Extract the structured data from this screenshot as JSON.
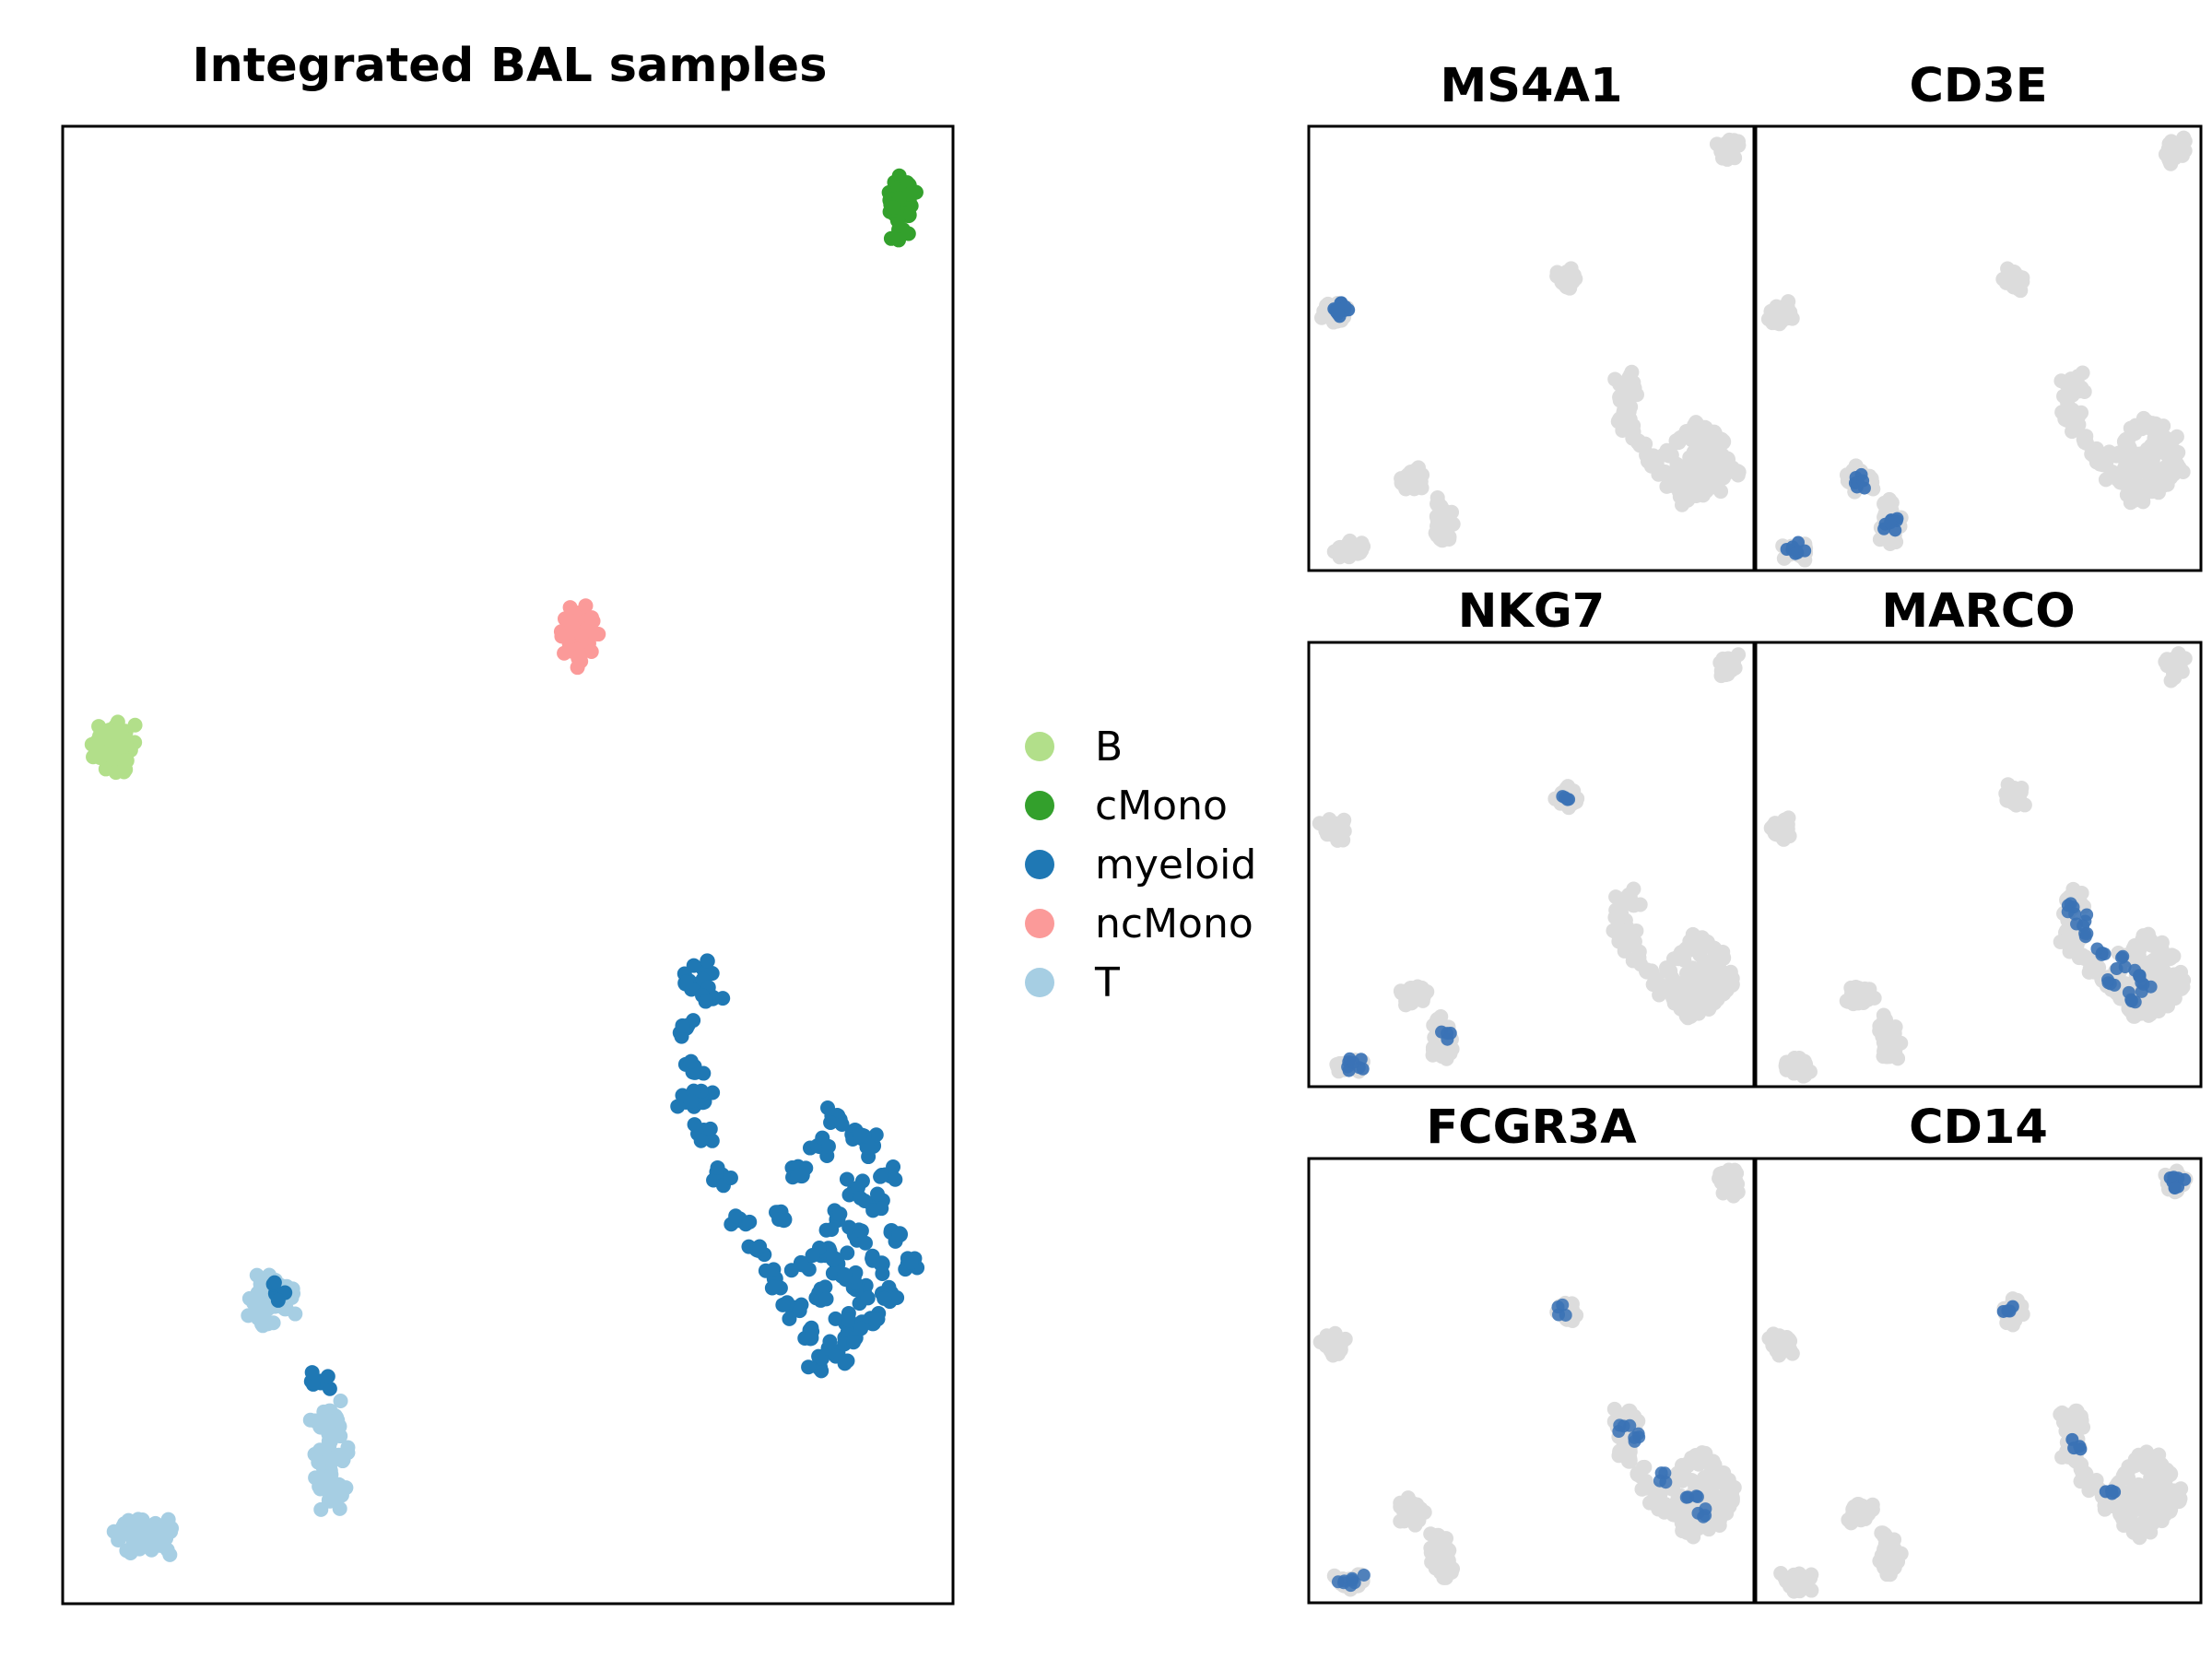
{
  "main_title": "Integrated BAL samples",
  "legend": [
    {
      "label": "B",
      "color": "#b2df8a"
    },
    {
      "label": "cMono",
      "color": "#33a02c"
    },
    {
      "label": "myeloid",
      "color": "#1f78b4"
    },
    {
      "label": "ncMono",
      "color": "#fb9a99"
    },
    {
      "label": "T",
      "color": "#a6cee3"
    }
  ],
  "colors": {
    "background_cell": "#dcdcdc",
    "expression_low": "#e3e3e3",
    "expression_high": "#3a72b5"
  },
  "chart_data": [
    {
      "type": "scatter",
      "title": "Integrated BAL samples",
      "xlabel": "",
      "ylabel": "",
      "xlim": [
        0,
        100
      ],
      "ylim": [
        0,
        100
      ],
      "grid": false,
      "legend_placement": "right",
      "series": [
        {
          "name": "B",
          "color": "#b2df8a",
          "points": [
            [
              5,
              59
            ],
            [
              6,
              58
            ],
            [
              7,
              59
            ],
            [
              5,
              58
            ],
            [
              6,
              59
            ],
            [
              7,
              58
            ],
            [
              5,
              57
            ],
            [
              6,
              57
            ],
            [
              4,
              58
            ],
            [
              7,
              57
            ]
          ]
        },
        {
          "name": "cMono",
          "color": "#33a02c",
          "points": [
            [
              94,
              95
            ],
            [
              95,
              95
            ],
            [
              94,
              94
            ],
            [
              95,
              94
            ],
            [
              94,
              96
            ],
            [
              95,
              96
            ],
            [
              94,
              93
            ],
            [
              93,
              95
            ]
          ]
        },
        {
          "name": "myeloid",
          "color": "#1f78b4",
          "points": [
            [
              70,
              42
            ],
            [
              72,
              43
            ],
            [
              73,
              41
            ],
            [
              70,
              39
            ],
            [
              71,
              36
            ],
            [
              72,
              34
            ],
            [
              70,
              34
            ],
            [
              72,
              32
            ],
            [
              74,
              29
            ],
            [
              76,
              26
            ],
            [
              78,
              24
            ],
            [
              80,
              22
            ],
            [
              82,
              20
            ],
            [
              84,
              18
            ],
            [
              85,
              16
            ],
            [
              87,
              17
            ],
            [
              88,
              19
            ],
            [
              90,
              21
            ],
            [
              92,
              23
            ],
            [
              94,
              25
            ],
            [
              95,
              23
            ],
            [
              93,
              21
            ],
            [
              91,
              19
            ],
            [
              89,
              18
            ],
            [
              88,
              22
            ],
            [
              86,
              24
            ],
            [
              87,
              26
            ],
            [
              89,
              28
            ],
            [
              91,
              31
            ],
            [
              93,
              29
            ],
            [
              91,
              27
            ],
            [
              89,
              25
            ],
            [
              87,
              23
            ],
            [
              85,
              21
            ],
            [
              83,
              23
            ],
            [
              81,
              26
            ],
            [
              83,
              29
            ],
            [
              85,
              31
            ],
            [
              87,
              33
            ],
            [
              89,
              32
            ]
          ]
        },
        {
          "name": "ncMono",
          "color": "#fb9a99",
          "points": [
            [
              57,
              66
            ],
            [
              58,
              67
            ],
            [
              59,
              66
            ],
            [
              58,
              65
            ],
            [
              57,
              65
            ],
            [
              59,
              65
            ],
            [
              58,
              64
            ]
          ]
        },
        {
          "name": "T",
          "color": "#a6cee3",
          "points": [
            [
              22,
              21
            ],
            [
              23,
              22
            ],
            [
              24,
              21
            ],
            [
              25,
              21
            ],
            [
              23,
              20
            ],
            [
              22,
              20
            ],
            [
              25,
              20
            ],
            [
              23,
              19
            ],
            [
              29,
              12
            ],
            [
              30,
              11
            ],
            [
              31,
              10
            ],
            [
              30,
              9
            ],
            [
              29,
              8
            ],
            [
              31,
              8
            ],
            [
              30,
              7
            ],
            [
              29,
              10
            ],
            [
              31,
              12
            ],
            [
              30,
              13
            ],
            [
              7,
              5
            ],
            [
              8,
              5
            ],
            [
              10,
              5
            ],
            [
              11,
              5
            ],
            [
              8,
              4
            ],
            [
              11,
              4
            ]
          ]
        },
        {
          "name": "myeloid",
          "color": "#1f78b4",
          "points": [
            [
              24,
              21
            ],
            [
              29,
              15
            ]
          ]
        }
      ]
    },
    {
      "type": "scatter",
      "title": "MS4A1",
      "xlim": [
        0,
        100
      ],
      "ylim": [
        0,
        100
      ],
      "series": [
        {
          "expression_level": 0.9,
          "points": [
            [
              7,
              59
            ],
            [
              8,
              59
            ],
            [
              7,
              58
            ]
          ]
        }
      ]
    },
    {
      "type": "scatter",
      "title": "CD3E",
      "xlim": [
        0,
        100
      ],
      "ylim": [
        0,
        100
      ],
      "series": [
        {
          "expression_level": 0.85,
          "points": [
            [
              23,
              21
            ],
            [
              24,
              20
            ],
            [
              30,
              10
            ],
            [
              31,
              11
            ],
            [
              8,
              5
            ],
            [
              10,
              5
            ]
          ]
        }
      ]
    },
    {
      "type": "scatter",
      "title": "NKG7",
      "xlim": [
        0,
        100
      ],
      "ylim": [
        0,
        100
      ],
      "series": [
        {
          "expression_level": 0.8,
          "points": [
            [
              8,
              5
            ],
            [
              11,
              5
            ],
            [
              57,
              66
            ],
            [
              31,
              12
            ]
          ]
        }
      ]
    },
    {
      "type": "scatter",
      "title": "MARCO",
      "xlim": [
        0,
        100
      ],
      "ylim": [
        0,
        100
      ],
      "series": [
        {
          "expression_level": 0.75,
          "points": [
            [
              71,
              40
            ],
            [
              73,
              38
            ],
            [
              74,
              35
            ],
            [
              78,
              31
            ],
            [
              82,
              28
            ],
            [
              86,
              26
            ],
            [
              88,
              22
            ],
            [
              84,
              20
            ],
            [
              80,
              24
            ]
          ]
        }
      ]
    },
    {
      "type": "scatter",
      "title": "FCGR3A",
      "xlim": [
        0,
        100
      ],
      "ylim": [
        0,
        100
      ],
      "series": [
        {
          "expression_level": 0.7,
          "points": [
            [
              57,
              66
            ],
            [
              71,
              40
            ],
            [
              73,
              37
            ],
            [
              80,
              28
            ],
            [
              86,
              24
            ],
            [
              88,
              20
            ],
            [
              8,
              5
            ],
            [
              11,
              5
            ]
          ]
        }
      ]
    },
    {
      "type": "scatter",
      "title": "CD14",
      "xlim": [
        0,
        100
      ],
      "ylim": [
        0,
        100
      ],
      "series": [
        {
          "expression_level": 0.85,
          "points": [
            [
              94,
              95
            ],
            [
              95,
              94
            ],
            [
              57,
              66
            ],
            [
              72,
              36
            ],
            [
              80,
              26
            ]
          ]
        }
      ]
    }
  ]
}
